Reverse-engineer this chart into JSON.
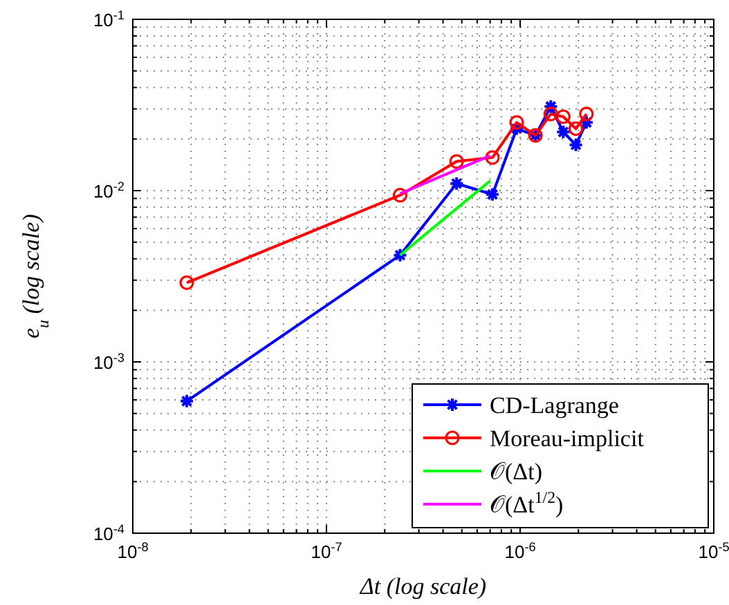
{
  "chart_data": {
    "type": "line",
    "xlabel": "Δt (log scale)",
    "ylabel": "e$_{u}$ (log scale)",
    "log": "xy",
    "grid": true,
    "legend": "bottom right",
    "line_style": "solid",
    "xlim": [
      1e-08,
      1e-05
    ],
    "ylim": [
      0.0001,
      0.1
    ],
    "xticks": [
      {
        "value": 1e-08,
        "label": "10$^{-8}$"
      },
      {
        "value": 2e-08,
        "label": null
      },
      {
        "value": 3e-08,
        "label": null
      },
      {
        "value": 4e-08,
        "label": null
      },
      {
        "value": 5e-08,
        "label": null
      },
      {
        "value": 6e-08,
        "label": null
      },
      {
        "value": 7e-08,
        "label": null
      },
      {
        "value": 8e-08,
        "label": null
      },
      {
        "value": 9e-08,
        "label": null
      },
      {
        "value": 1e-07,
        "label": "10$^{-7}$"
      },
      {
        "value": 2e-07,
        "label": null
      },
      {
        "value": 3e-07,
        "label": null
      },
      {
        "value": 4e-07,
        "label": null
      },
      {
        "value": 5e-07,
        "label": null
      },
      {
        "value": 6e-07,
        "label": null
      },
      {
        "value": 7e-07,
        "label": null
      },
      {
        "value": 8e-07,
        "label": null
      },
      {
        "value": 9e-07,
        "label": null
      },
      {
        "value": 1e-06,
        "label": "10$^{-6}$"
      },
      {
        "value": 2e-06,
        "label": null
      },
      {
        "value": 3e-06,
        "label": null
      },
      {
        "value": 4e-06,
        "label": null
      },
      {
        "value": 5e-06,
        "label": null
      },
      {
        "value": 6e-06,
        "label": null
      },
      {
        "value": 7e-06,
        "label": null
      },
      {
        "value": 8e-06,
        "label": null
      },
      {
        "value": 9e-06,
        "label": null
      },
      {
        "value": 1e-05,
        "label": "10$^{-5}$"
      }
    ],
    "yticks": [
      {
        "value": 0.0001,
        "label": "10$^{-4}$"
      },
      {
        "value": 0.0002,
        "label": null
      },
      {
        "value": 0.0003,
        "label": null
      },
      {
        "value": 0.0004,
        "label": null
      },
      {
        "value": 0.0005,
        "label": null
      },
      {
        "value": 0.0006,
        "label": null
      },
      {
        "value": 0.0007,
        "label": null
      },
      {
        "value": 0.0008,
        "label": null
      },
      {
        "value": 0.0009,
        "label": null
      },
      {
        "value": 0.001,
        "label": "10$^{-3}$"
      },
      {
        "value": 0.002,
        "label": null
      },
      {
        "value": 0.003,
        "label": null
      },
      {
        "value": 0.004,
        "label": null
      },
      {
        "value": 0.005,
        "label": null
      },
      {
        "value": 0.006,
        "label": null
      },
      {
        "value": 0.007,
        "label": null
      },
      {
        "value": 0.008,
        "label": null
      },
      {
        "value": 0.009,
        "label": null
      },
      {
        "value": 0.01,
        "label": "10$^{-2}$"
      },
      {
        "value": 0.02,
        "label": null
      },
      {
        "value": 0.03,
        "label": null
      },
      {
        "value": 0.04,
        "label": null
      },
      {
        "value": 0.05,
        "label": null
      },
      {
        "value": 0.06,
        "label": null
      },
      {
        "value": 0.07,
        "label": null
      },
      {
        "value": 0.08,
        "label": null
      },
      {
        "value": 0.09,
        "label": null
      },
      {
        "value": 0.1,
        "label": "10$^{-1}$"
      }
    ],
    "series": [
      {
        "name": "CD-Lagrange",
        "color": "#0000ff",
        "marker": "cross",
        "x": [
          1.9e-08,
          2.4e-07,
          4.7e-07,
          7.2e-07,
          9.6e-07,
          1.2e-06,
          1.44e-06,
          1.67e-06,
          1.94e-06,
          2.2e-06
        ],
        "values": [
          0.00059,
          0.0042,
          0.011,
          0.0095,
          0.023,
          0.021,
          0.031,
          0.022,
          0.0185,
          0.025
        ]
      },
      {
        "name": "Moreau-implicit",
        "color": "#ff0000",
        "marker": "circle",
        "x": [
          1.9e-08,
          2.4e-07,
          4.7e-07,
          7.2e-07,
          9.6e-07,
          1.2e-06,
          1.44e-06,
          1.67e-06,
          1.94e-06,
          2.2e-06
        ],
        "values": [
          0.0029,
          0.0094,
          0.0148,
          0.0156,
          0.025,
          0.021,
          0.028,
          0.027,
          0.023,
          0.028
        ]
      },
      {
        "name": "𝒪(Δt)",
        "color": "#00ff00",
        "marker": "none",
        "x": [
          2.4e-07,
          7e-07
        ],
        "values": [
          0.0042,
          0.0114
        ]
      },
      {
        "name": "𝒪(Δt$^{1/2}$)",
        "color": "#ff00ff",
        "marker": "none",
        "x": [
          2.4e-07,
          7e-07
        ],
        "values": [
          0.0096,
          0.016
        ]
      }
    ]
  }
}
